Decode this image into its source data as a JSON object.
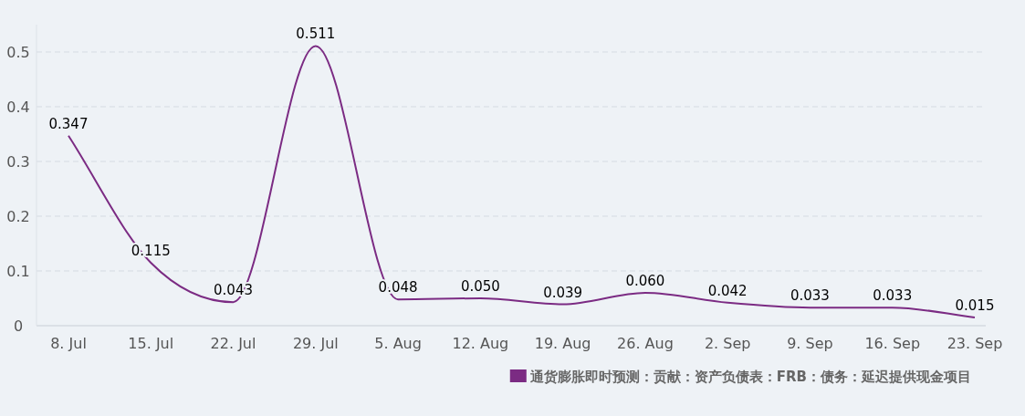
{
  "chart_data": {
    "type": "line",
    "categories": [
      "8. Jul",
      "15. Jul",
      "22. Jul",
      "29. Jul",
      "5. Aug",
      "12. Aug",
      "19. Aug",
      "26. Aug",
      "2. Sep",
      "9. Sep",
      "16. Sep",
      "23. Sep"
    ],
    "series": [
      {
        "name": "通货膨胀即时预测：贡献：资产负债表：FRB：债务：延迟提供现金项目",
        "color": "#7b2b83",
        "values": [
          0.347,
          0.115,
          0.043,
          0.511,
          0.048,
          0.05,
          0.039,
          0.06,
          0.042,
          0.033,
          0.033,
          0.015
        ],
        "value_labels": [
          "0.347",
          "0.115",
          "0.043",
          "0.511",
          "0.048",
          "0.050",
          "0.039",
          "0.060",
          "0.042",
          "0.033",
          "0.033",
          "0.015"
        ]
      }
    ],
    "ylim": [
      0,
      0.55
    ],
    "yticks": [
      0,
      0.1,
      0.2,
      0.3,
      0.4,
      0.5
    ],
    "grid": "y",
    "legend": "bottom right"
  }
}
